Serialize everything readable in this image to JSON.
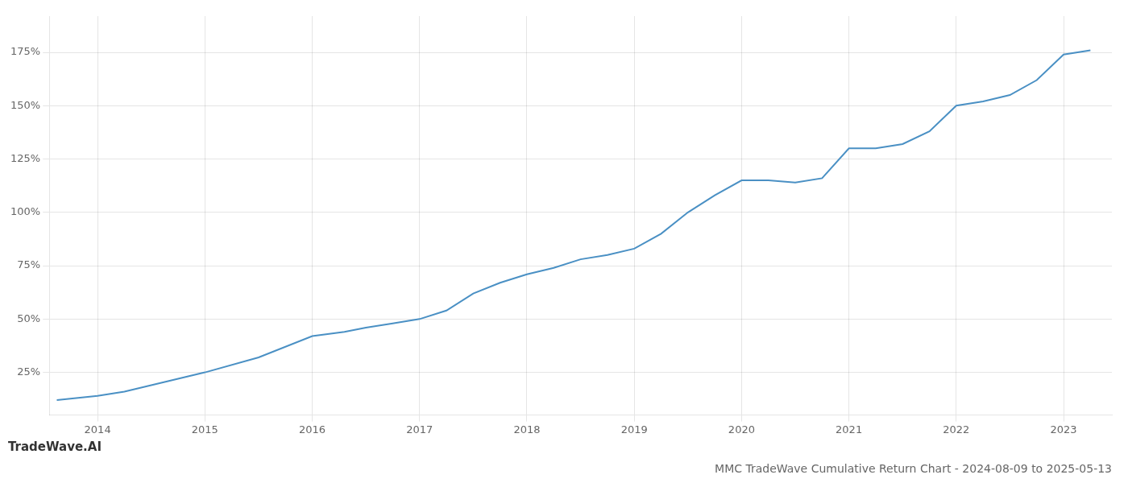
{
  "chart_data": {
    "type": "line",
    "title": "MMC TradeWave Cumulative Return Chart - 2024-08-09 to 2025-05-13",
    "annotations": [
      "TradeWave.AI"
    ],
    "x": [
      2013.62,
      2014.0,
      2014.25,
      2014.5,
      2015.0,
      2015.5,
      2016.0,
      2016.3,
      2016.5,
      2016.75,
      2017.0,
      2017.25,
      2017.5,
      2017.75,
      2018.0,
      2018.25,
      2018.5,
      2018.75,
      2019.0,
      2019.25,
      2019.5,
      2019.75,
      2020.0,
      2020.25,
      2020.5,
      2020.75,
      2021.0,
      2021.25,
      2021.5,
      2021.75,
      2022.0,
      2022.25,
      2022.5,
      2022.75,
      2023.0,
      2023.25
    ],
    "values": [
      12,
      14,
      16,
      19,
      25,
      32,
      42,
      44,
      46,
      48,
      50,
      54,
      62,
      67,
      71,
      74,
      78,
      80,
      83,
      90,
      100,
      108,
      115,
      115,
      114,
      116,
      130,
      130,
      132,
      138,
      150,
      152,
      155,
      162,
      174,
      176
    ],
    "color": "#4a90c4",
    "xlim": [
      2013.55,
      2023.45
    ],
    "xticks": [
      2014,
      2015,
      2016,
      2017,
      2018,
      2019,
      2020,
      2021,
      2022,
      2023
    ],
    "ylim": [
      5,
      192
    ],
    "yticks": [
      {
        "value": 25,
        "label": "25%"
      },
      {
        "value": 50,
        "label": "50%"
      },
      {
        "value": 75,
        "label": "75%"
      },
      {
        "value": 100,
        "label": "100%"
      },
      {
        "value": 125,
        "label": "125%"
      },
      {
        "value": 150,
        "label": "150%"
      },
      {
        "value": 175,
        "label": "175%"
      }
    ],
    "grid": true
  }
}
